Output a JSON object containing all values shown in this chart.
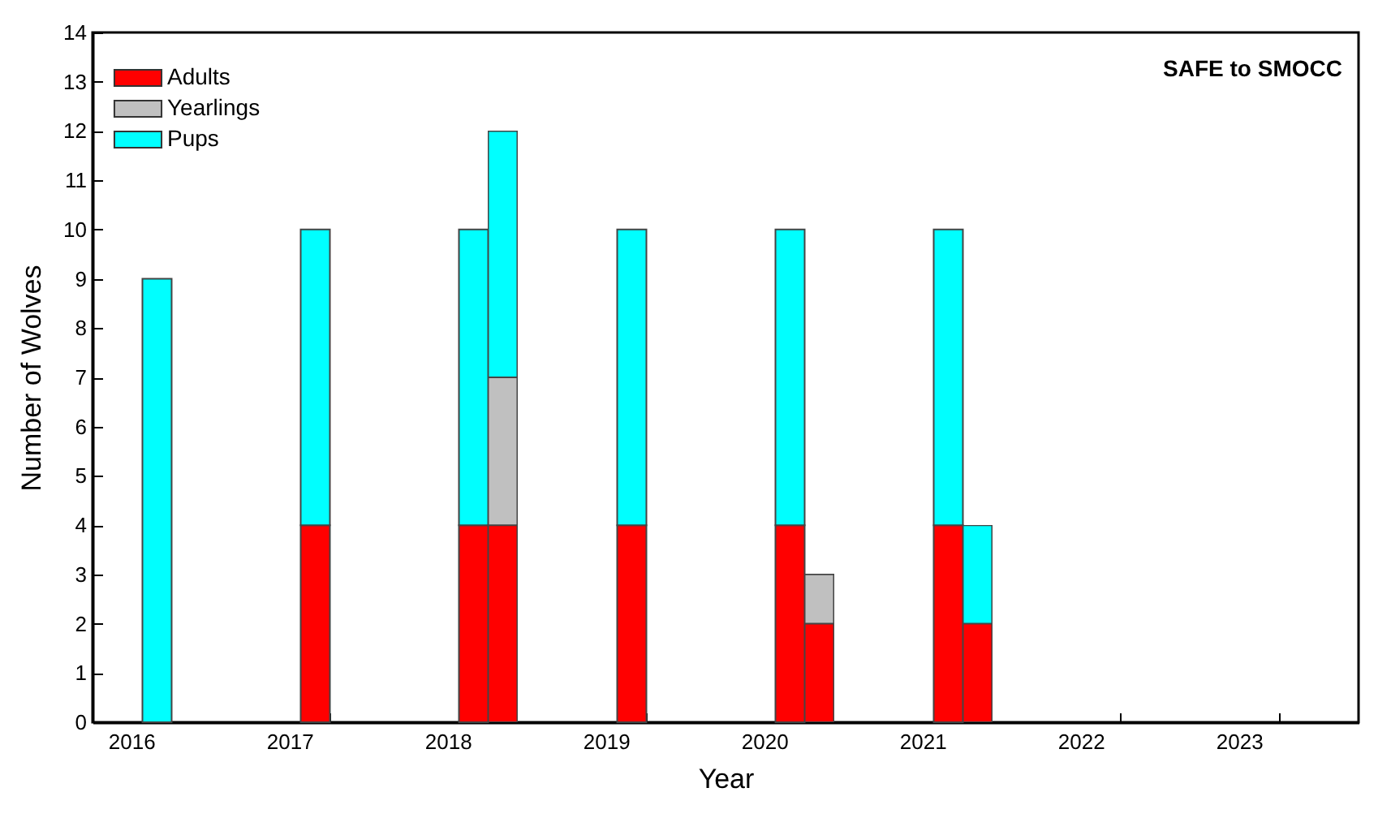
{
  "chart_data": {
    "type": "bar",
    "stacked": true,
    "xlabel": "Year",
    "ylabel": "Number of Wolves",
    "annotations": [
      "SAFE to SMOCC"
    ],
    "categories": [
      "2016",
      null,
      "2017",
      null,
      "2018",
      null,
      "2019",
      null,
      "2020",
      null,
      "2021",
      null,
      "2022",
      null,
      "2023",
      null
    ],
    "series": [
      {
        "name": "Adults",
        "color": "#ff0000",
        "values": [
          0,
          0,
          4,
          0,
          4,
          4,
          4,
          0,
          4,
          2,
          4,
          2,
          0,
          0,
          0,
          0
        ]
      },
      {
        "name": "Yearlings",
        "color": "#c0c0c0",
        "values": [
          0,
          0,
          0,
          0,
          0,
          3,
          0,
          0,
          0,
          1,
          0,
          0,
          0,
          0,
          0,
          0
        ]
      },
      {
        "name": "Pups",
        "color": "#00ffff",
        "values": [
          9,
          0,
          6,
          0,
          6,
          5,
          6,
          0,
          6,
          0,
          6,
          2,
          0,
          0,
          0,
          0
        ]
      }
    ],
    "ylim": [
      0,
      14
    ],
    "yticks": [
      0,
      1,
      2,
      3,
      4,
      5,
      6,
      7,
      8,
      9,
      10,
      11,
      12,
      13,
      14
    ],
    "grid": false,
    "legend": "top left"
  }
}
